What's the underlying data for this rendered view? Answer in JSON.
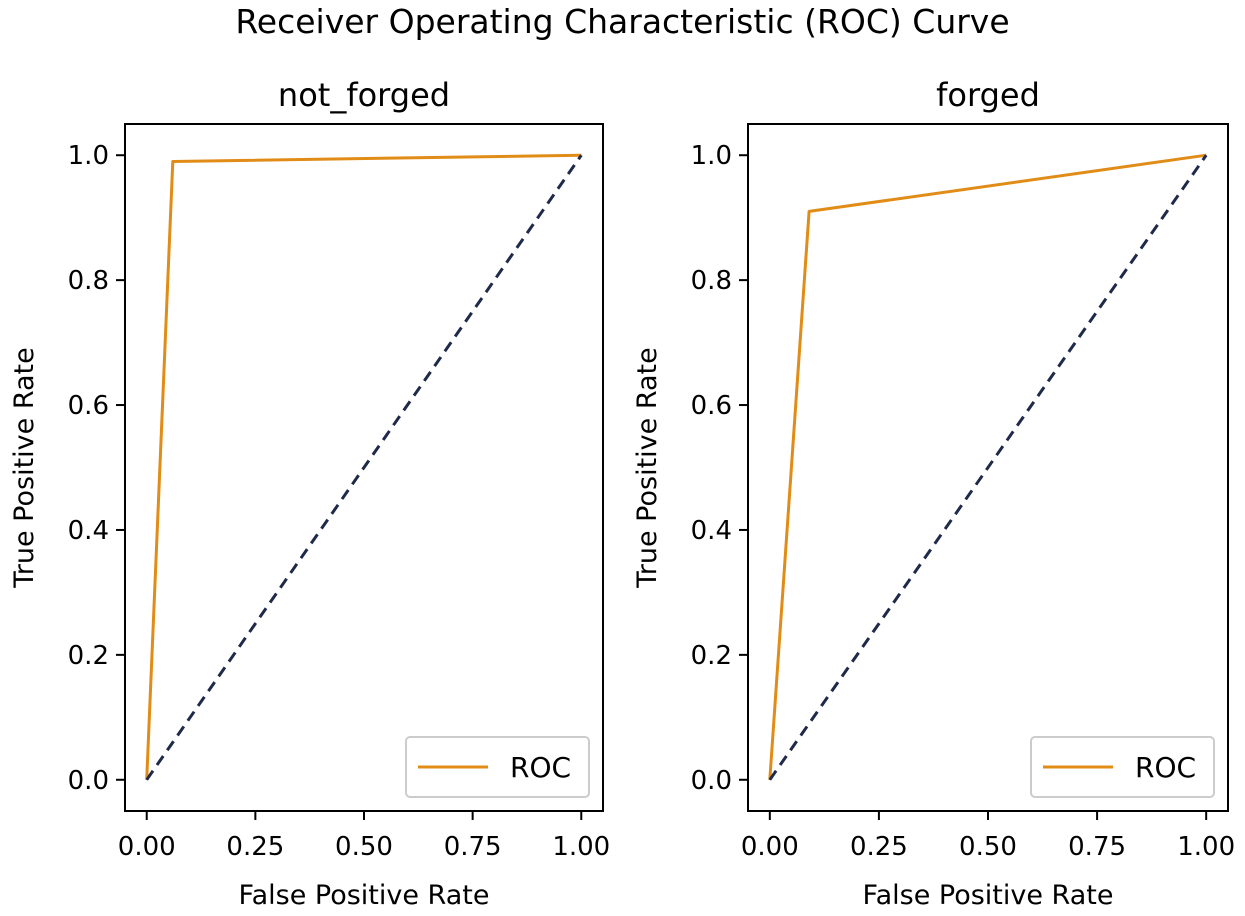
{
  "figure_title": "Receiver Operating Characteristic (ROC) Curve",
  "colors": {
    "roc": "#e08c17",
    "diagonal": "#1f2a4a",
    "axes": "#000000"
  },
  "chart_data": [
    {
      "type": "line",
      "title": "not_forged",
      "xlabel": "False Positive Rate",
      "ylabel": "True Positive Rate",
      "xlim": [
        -0.05,
        1.05
      ],
      "ylim": [
        -0.05,
        1.05
      ],
      "xticks": [
        0.0,
        0.25,
        0.5,
        0.75,
        1.0
      ],
      "xtick_labels": [
        "0.00",
        "0.25",
        "0.50",
        "0.75",
        "1.00"
      ],
      "yticks": [
        0.0,
        0.2,
        0.4,
        0.6,
        0.8,
        1.0
      ],
      "ytick_labels": [
        "0.0",
        "0.2",
        "0.4",
        "0.6",
        "0.8",
        "1.0"
      ],
      "legend": {
        "location": "lower-right",
        "entries": [
          "ROC"
        ]
      },
      "series": [
        {
          "name": "ROC",
          "x": [
            0.0,
            0.06,
            1.0
          ],
          "y": [
            0.0,
            0.99,
            1.0
          ]
        },
        {
          "name": "chance",
          "style": "dashed",
          "x": [
            0.0,
            1.0
          ],
          "y": [
            0.0,
            1.0
          ]
        }
      ]
    },
    {
      "type": "line",
      "title": "forged",
      "xlabel": "False Positive Rate",
      "ylabel": "True Positive Rate",
      "xlim": [
        -0.05,
        1.05
      ],
      "ylim": [
        -0.05,
        1.05
      ],
      "xticks": [
        0.0,
        0.25,
        0.5,
        0.75,
        1.0
      ],
      "xtick_labels": [
        "0.00",
        "0.25",
        "0.50",
        "0.75",
        "1.00"
      ],
      "yticks": [
        0.0,
        0.2,
        0.4,
        0.6,
        0.8,
        1.0
      ],
      "ytick_labels": [
        "0.0",
        "0.2",
        "0.4",
        "0.6",
        "0.8",
        "1.0"
      ],
      "legend": {
        "location": "lower-right",
        "entries": [
          "ROC"
        ]
      },
      "series": [
        {
          "name": "ROC",
          "x": [
            0.0,
            0.09,
            1.0
          ],
          "y": [
            0.0,
            0.91,
            1.0
          ]
        },
        {
          "name": "chance",
          "style": "dashed",
          "x": [
            0.0,
            1.0
          ],
          "y": [
            0.0,
            1.0
          ]
        }
      ]
    }
  ]
}
